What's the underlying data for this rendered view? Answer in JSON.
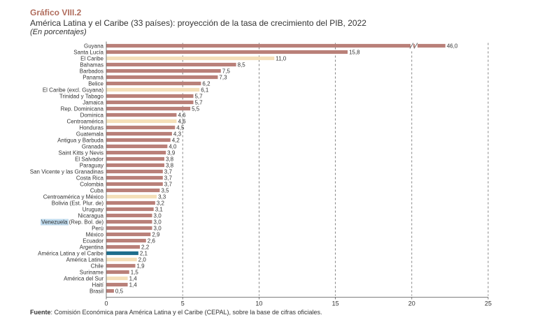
{
  "header": {
    "title": "Gráfico VIII.2",
    "subtitle": "América Latina y el Caribe (33 países): proyección de la tasa de crecimiento del PIB, 2022",
    "units": "(En porcentajes)"
  },
  "footer": {
    "source_label": "Fuente",
    "source_text": ": Comisión Económica para América Latina y el Caribe (CEPAL), sobre la base de cifras oficiales."
  },
  "colors": {
    "country": "#b98079",
    "aggregate": "#f4dfb9",
    "highlight": "#1f6e8c",
    "axis": "#555555",
    "grid": "#666666",
    "search_highlight": "#bfdbee"
  },
  "chart_data": {
    "type": "bar",
    "orientation": "horizontal",
    "title": "América Latina y el Caribe (33 países): proyección de la tasa de crecimiento del PIB, 2022",
    "xlabel": "",
    "ylabel": "",
    "xlim": [
      0,
      25
    ],
    "xticks": [
      0,
      5,
      10,
      15,
      20,
      25
    ],
    "grid": "vertical-dashed",
    "axis_break": "Guyana bar truncated with break marks near 20",
    "categories": [
      "Guyana",
      "Santa Lucía",
      "El Caribe",
      "Bahamas",
      "Barbados",
      "Panamá",
      "Belice",
      "El Caribe (excl. Guyana)",
      "Trinidad y Tabago",
      "Jamaica",
      "Rep. Dominicana",
      "Dominica",
      "Centroamérica",
      "Honduras",
      "Guatemala",
      "Antigua y Barbuda",
      "Granada",
      "Saint Kitts y Nevis",
      "El Salvador",
      "Paraguay",
      "San Vicente y las Granadinas",
      "Costa Rica",
      "Colombia",
      "Cuba",
      "Centroamérica y México",
      "Bolivia (Est. Plur. de)",
      "Uruguay",
      "Nicaragua",
      "Venezuela (Rep. Bol. de)",
      "Perú",
      "México",
      "Ecuador",
      "Argentina",
      "América Latina y el Caribe",
      "América Latina",
      "Chile",
      "Suriname",
      "América del Sur",
      "Haití",
      "Brasil"
    ],
    "values": [
      46.0,
      15.8,
      11.0,
      8.5,
      7.5,
      7.3,
      6.2,
      6.1,
      5.7,
      5.7,
      5.5,
      4.6,
      4.6,
      4.5,
      4.3,
      4.2,
      4.0,
      3.9,
      3.8,
      3.8,
      3.7,
      3.7,
      3.7,
      3.5,
      3.3,
      3.2,
      3.1,
      3.0,
      3.0,
      3.0,
      2.9,
      2.6,
      2.2,
      2.1,
      2.0,
      1.9,
      1.5,
      1.4,
      1.4,
      0.5
    ],
    "value_labels": [
      "46,0",
      "15,8",
      "11,0",
      "8,5",
      "7,5",
      "7,3",
      "6,2",
      "6,1",
      "5,7",
      "5,7",
      "5,5",
      "4,6",
      "4,6",
      "4,5",
      "4,3",
      "4,2",
      "4,0",
      "3,9",
      "3,8",
      "3,8",
      "3,7",
      "3,7",
      "3,7",
      "3,5",
      "3,3",
      "3,2",
      "3,1",
      "3,0",
      "3,0",
      "3,0",
      "2,9",
      "2,6",
      "2,2",
      "2,1",
      "2,0",
      "1,9",
      "1,5",
      "1,4",
      "1,4",
      "0,5"
    ],
    "bar_kind": [
      "country",
      "country",
      "aggregate",
      "country",
      "country",
      "country",
      "country",
      "aggregate",
      "country",
      "country",
      "country",
      "country",
      "aggregate",
      "country",
      "country",
      "country",
      "country",
      "country",
      "country",
      "country",
      "country",
      "country",
      "country",
      "country",
      "aggregate",
      "country",
      "country",
      "country",
      "country",
      "country",
      "country",
      "country",
      "country",
      "highlight",
      "aggregate",
      "country",
      "country",
      "aggregate",
      "country",
      "country"
    ],
    "highlighted_text": {
      "category": "Venezuela (Rep. Bol. de)",
      "word": "Venezuela"
    }
  }
}
